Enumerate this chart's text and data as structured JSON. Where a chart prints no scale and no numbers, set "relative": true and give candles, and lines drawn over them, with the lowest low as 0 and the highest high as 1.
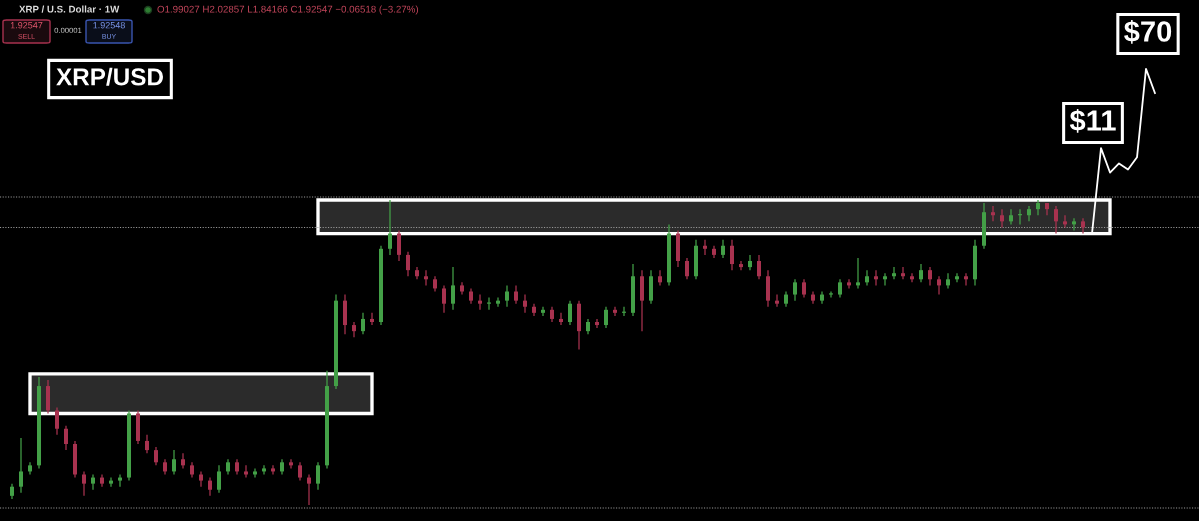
{
  "chart_data": {
    "type": "candlestick",
    "title": "XRP/USD",
    "annotations": [
      "XRP / U.S. Dollar · 1W",
      "O1.99027 H2.02857 L1.84166 C1.92547 −0.06518 (−3.27%)",
      "1.92547",
      "SELL",
      "0.00001",
      "1.92548",
      "BUY",
      "$11",
      "$70"
    ],
    "categories": [
      null,
      null,
      null,
      null,
      null,
      null,
      null,
      null,
      null,
      null,
      null,
      null,
      null,
      null,
      null,
      null,
      null,
      null,
      null,
      null,
      null,
      null,
      null,
      null,
      null,
      null,
      null,
      null,
      null,
      null,
      null,
      null,
      null,
      null,
      null,
      null,
      null,
      null,
      null,
      null,
      null,
      null,
      null,
      null,
      null,
      null,
      null,
      null,
      null,
      null,
      null,
      null,
      null,
      null,
      null,
      null,
      null,
      null,
      null,
      null,
      null,
      null,
      null,
      null,
      null,
      null,
      null,
      null,
      null,
      null,
      null,
      null,
      null,
      null,
      null,
      null,
      null,
      null,
      null,
      null,
      null,
      null,
      null,
      null,
      null,
      null,
      null,
      null,
      null,
      null,
      null,
      null,
      null,
      null,
      null,
      null,
      null,
      null,
      null,
      null,
      null,
      null,
      null,
      null,
      null,
      null,
      null,
      null,
      null,
      null,
      null,
      null,
      null,
      null,
      null,
      null,
      null,
      null,
      null,
      null,
      null,
      null,
      null,
      null,
      null,
      null,
      null,
      null
    ],
    "ohlc": [
      [
        0.03,
        0.07,
        0.02,
        0.06
      ],
      [
        0.06,
        0.22,
        0.04,
        0.11
      ],
      [
        0.11,
        0.14,
        0.1,
        0.13
      ],
      [
        0.13,
        0.42,
        0.12,
        0.39
      ],
      [
        0.39,
        0.41,
        0.3,
        0.31
      ],
      [
        0.31,
        0.32,
        0.23,
        0.25
      ],
      [
        0.25,
        0.26,
        0.18,
        0.2
      ],
      [
        0.2,
        0.21,
        0.09,
        0.1
      ],
      [
        0.1,
        0.11,
        0.03,
        0.07
      ],
      [
        0.07,
        0.1,
        0.05,
        0.09
      ],
      [
        0.09,
        0.1,
        0.06,
        0.07
      ],
      [
        0.07,
        0.09,
        0.06,
        0.08
      ],
      [
        0.08,
        0.1,
        0.06,
        0.09
      ],
      [
        0.09,
        0.31,
        0.08,
        0.3
      ],
      [
        0.3,
        0.31,
        0.2,
        0.21
      ],
      [
        0.21,
        0.23,
        0.17,
        0.18
      ],
      [
        0.18,
        0.19,
        0.13,
        0.14
      ],
      [
        0.14,
        0.15,
        0.1,
        0.11
      ],
      [
        0.11,
        0.18,
        0.1,
        0.15
      ],
      [
        0.15,
        0.17,
        0.12,
        0.13
      ],
      [
        0.13,
        0.14,
        0.09,
        0.1
      ],
      [
        0.1,
        0.11,
        0.06,
        0.08
      ],
      [
        0.08,
        0.09,
        0.03,
        0.05
      ],
      [
        0.05,
        0.13,
        0.04,
        0.11
      ],
      [
        0.11,
        0.15,
        0.1,
        0.14
      ],
      [
        0.14,
        0.15,
        0.1,
        0.11
      ],
      [
        0.11,
        0.13,
        0.09,
        0.1
      ],
      [
        0.1,
        0.12,
        0.09,
        0.11
      ],
      [
        0.11,
        0.13,
        0.1,
        0.12
      ],
      [
        0.12,
        0.13,
        0.1,
        0.11
      ],
      [
        0.11,
        0.15,
        0.1,
        0.14
      ],
      [
        0.14,
        0.15,
        0.12,
        0.13
      ],
      [
        0.13,
        0.14,
        0.08,
        0.09
      ],
      [
        0.09,
        0.1,
        0.0,
        0.07
      ],
      [
        0.07,
        0.14,
        0.05,
        0.13
      ],
      [
        0.13,
        0.44,
        0.12,
        0.39
      ],
      [
        0.39,
        0.69,
        0.38,
        0.67
      ],
      [
        0.67,
        0.69,
        0.56,
        0.59
      ],
      [
        0.59,
        0.6,
        0.55,
        0.57
      ],
      [
        0.57,
        0.63,
        0.56,
        0.61
      ],
      [
        0.61,
        0.63,
        0.59,
        0.6
      ],
      [
        0.6,
        0.85,
        0.59,
        0.84
      ],
      [
        0.84,
        1.0,
        0.82,
        0.89
      ],
      [
        0.89,
        0.9,
        0.8,
        0.82
      ],
      [
        0.82,
        0.83,
        0.75,
        0.77
      ],
      [
        0.77,
        0.78,
        0.74,
        0.75
      ],
      [
        0.75,
        0.77,
        0.72,
        0.74
      ],
      [
        0.74,
        0.75,
        0.7,
        0.71
      ],
      [
        0.71,
        0.72,
        0.63,
        0.66
      ],
      [
        0.66,
        0.78,
        0.64,
        0.72
      ],
      [
        0.72,
        0.73,
        0.69,
        0.7
      ],
      [
        0.7,
        0.71,
        0.66,
        0.67
      ],
      [
        0.67,
        0.69,
        0.64,
        0.66
      ],
      [
        0.66,
        0.68,
        0.64,
        0.66
      ],
      [
        0.66,
        0.68,
        0.65,
        0.67
      ],
      [
        0.67,
        0.72,
        0.65,
        0.7
      ],
      [
        0.7,
        0.72,
        0.66,
        0.67
      ],
      [
        0.67,
        0.69,
        0.63,
        0.65
      ],
      [
        0.65,
        0.66,
        0.62,
        0.63
      ],
      [
        0.63,
        0.65,
        0.62,
        0.64
      ],
      [
        0.64,
        0.65,
        0.6,
        0.61
      ],
      [
        0.61,
        0.63,
        0.59,
        0.6
      ],
      [
        0.6,
        0.67,
        0.59,
        0.66
      ],
      [
        0.66,
        0.67,
        0.51,
        0.57
      ],
      [
        0.57,
        0.61,
        0.56,
        0.6
      ],
      [
        0.6,
        0.61,
        0.58,
        0.59
      ],
      [
        0.59,
        0.65,
        0.58,
        0.64
      ],
      [
        0.64,
        0.65,
        0.62,
        0.63
      ],
      [
        0.63,
        0.65,
        0.62,
        0.63
      ],
      [
        0.63,
        0.79,
        0.62,
        0.75
      ],
      [
        0.75,
        0.77,
        0.57,
        0.67
      ],
      [
        0.67,
        0.77,
        0.66,
        0.75
      ],
      [
        0.75,
        0.77,
        0.72,
        0.73
      ],
      [
        0.73,
        0.92,
        0.72,
        0.89
      ],
      [
        0.89,
        0.9,
        0.78,
        0.8
      ],
      [
        0.8,
        0.81,
        0.74,
        0.75
      ],
      [
        0.75,
        0.87,
        0.74,
        0.85
      ],
      [
        0.85,
        0.87,
        0.82,
        0.84
      ],
      [
        0.84,
        0.85,
        0.81,
        0.82
      ],
      [
        0.82,
        0.87,
        0.81,
        0.85
      ],
      [
        0.85,
        0.87,
        0.77,
        0.79
      ],
      [
        0.79,
        0.8,
        0.77,
        0.78
      ],
      [
        0.78,
        0.82,
        0.77,
        0.8
      ],
      [
        0.8,
        0.82,
        0.74,
        0.75
      ],
      [
        0.75,
        0.77,
        0.65,
        0.67
      ],
      [
        0.67,
        0.69,
        0.65,
        0.66
      ],
      [
        0.66,
        0.7,
        0.65,
        0.69
      ],
      [
        0.69,
        0.74,
        0.67,
        0.73
      ],
      [
        0.73,
        0.74,
        0.68,
        0.69
      ],
      [
        0.69,
        0.7,
        0.66,
        0.67
      ],
      [
        0.67,
        0.7,
        0.66,
        0.69
      ],
      [
        0.69,
        0.7,
        0.68,
        0.69
      ],
      [
        0.69,
        0.74,
        0.68,
        0.73
      ],
      [
        0.73,
        0.74,
        0.71,
        0.72
      ],
      [
        0.72,
        0.81,
        0.71,
        0.73
      ],
      [
        0.73,
        0.77,
        0.72,
        0.75
      ],
      [
        0.75,
        0.77,
        0.72,
        0.74
      ],
      [
        0.74,
        0.76,
        0.72,
        0.75
      ],
      [
        0.75,
        0.78,
        0.74,
        0.76
      ],
      [
        0.76,
        0.78,
        0.74,
        0.75
      ],
      [
        0.75,
        0.76,
        0.73,
        0.74
      ],
      [
        0.74,
        0.79,
        0.73,
        0.77
      ],
      [
        0.77,
        0.78,
        0.72,
        0.74
      ],
      [
        0.74,
        0.75,
        0.69,
        0.72
      ],
      [
        0.72,
        0.76,
        0.71,
        0.74
      ],
      [
        0.74,
        0.76,
        0.73,
        0.75
      ],
      [
        0.75,
        0.76,
        0.72,
        0.74
      ],
      [
        0.74,
        0.87,
        0.72,
        0.85
      ],
      [
        0.85,
        0.99,
        0.84,
        0.96
      ],
      [
        0.96,
        0.98,
        0.93,
        0.95
      ],
      [
        0.95,
        0.97,
        0.91,
        0.93
      ],
      [
        0.93,
        0.97,
        0.92,
        0.95
      ],
      [
        0.95,
        0.97,
        0.92,
        0.95
      ],
      [
        0.95,
        0.98,
        0.93,
        0.97
      ],
      [
        0.97,
        1.0,
        0.95,
        0.99
      ],
      [
        0.99,
        0.99,
        0.95,
        0.97
      ],
      [
        0.97,
        0.98,
        0.89,
        0.93
      ],
      [
        0.93,
        0.95,
        0.91,
        0.92
      ],
      [
        0.92,
        0.94,
        0.9,
        0.93
      ],
      [
        0.93,
        0.94,
        0.89,
        0.91
      ],
      null,
      null,
      null,
      null,
      null,
      null,
      null,
      null
    ],
    "colors": [
      "#43a047",
      "#43a047",
      "#43a047",
      "#43a047",
      "#a8324f",
      "#a8324f",
      "#a8324f",
      "#a8324f",
      "#a8324f",
      "#43a047",
      "#a8324f",
      "#43a047",
      "#43a047",
      "#43a047",
      "#a8324f",
      "#a8324f",
      "#a8324f",
      "#a8324f",
      "#43a047",
      "#a8324f",
      "#a8324f",
      "#a8324f",
      "#a8324f",
      "#43a047",
      "#43a047",
      "#a8324f",
      "#a8324f",
      "#43a047",
      "#43a047",
      "#a8324f",
      "#43a047",
      "#a8324f",
      "#a8324f",
      "#a8324f",
      "#43a047",
      "#43a047",
      "#43a047",
      "#a8324f",
      "#a8324f",
      "#43a047",
      "#a8324f",
      "#43a047",
      "#43a047",
      "#a8324f",
      "#a8324f",
      "#a8324f",
      "#a8324f",
      "#a8324f",
      "#a8324f",
      "#43a047",
      "#a8324f",
      "#a8324f",
      "#a8324f",
      "#43a047",
      "#43a047",
      "#43a047",
      "#a8324f",
      "#a8324f",
      "#a8324f",
      "#43a047",
      "#a8324f",
      "#a8324f",
      "#43a047",
      "#a8324f",
      "#43a047",
      "#a8324f",
      "#43a047",
      "#a8324f",
      "#43a047",
      "#43a047",
      "#a8324f",
      "#43a047",
      "#a8324f",
      "#43a047",
      "#a8324f",
      "#a8324f",
      "#43a047",
      "#a8324f",
      "#a8324f",
      "#43a047",
      "#a8324f",
      "#a8324f",
      "#43a047",
      "#a8324f",
      "#a8324f",
      "#a8324f",
      "#43a047",
      "#43a047",
      "#a8324f",
      "#a8324f",
      "#43a047",
      "#43a047",
      "#43a047",
      "#a8324f",
      "#43a047",
      "#43a047",
      "#a8324f",
      "#43a047",
      "#43a047",
      "#a8324f",
      "#a8324f",
      "#43a047",
      "#a8324f",
      "#a8324f",
      "#43a047",
      "#43a047",
      "#a8324f",
      "#43a047",
      "#43a047",
      "#a8324f",
      "#a8324f",
      "#43a047",
      "#43a047",
      "#43a047",
      "#43a047",
      "#a8324f",
      "#a8324f",
      "#a8324f",
      "#43a047",
      "#a8324f",
      null,
      null,
      null,
      null,
      null,
      null,
      null,
      null
    ],
    "relative": true,
    "series": [
      {
        "type": "line",
        "color": "#ffffff",
        "values": [
          null,
          null,
          null,
          null,
          null,
          null,
          null,
          null,
          null,
          null,
          null,
          null,
          null,
          null,
          null,
          null,
          null,
          null,
          null,
          null,
          null,
          null,
          null,
          null,
          null,
          null,
          null,
          null,
          null,
          null,
          null,
          null,
          null,
          null,
          null,
          null,
          null,
          null,
          null,
          null,
          null,
          null,
          null,
          null,
          null,
          null,
          null,
          null,
          null,
          null,
          null,
          null,
          null,
          null,
          null,
          null,
          null,
          null,
          null,
          null,
          null,
          null,
          null,
          null,
          null,
          null,
          null,
          null,
          null,
          null,
          null,
          null,
          null,
          null,
          null,
          null,
          null,
          null,
          null,
          null,
          null,
          null,
          null,
          null,
          null,
          null,
          null,
          null,
          null,
          null,
          null,
          null,
          null,
          null,
          null,
          null,
          null,
          null,
          null,
          null,
          null,
          null,
          null,
          null,
          null,
          null,
          null,
          null,
          null,
          null,
          null,
          null,
          null,
          null,
          null,
          null,
          null,
          null,
          null,
          null,
          null,
          null,
          null,
          null,
          null,
          null,
          null,
          null
        ],
        "lower": [
          null,
          null,
          0.3,
          0.3,
          0.3,
          0.3,
          0.3,
          0.3,
          0.3,
          0.3,
          0.3,
          0.3,
          0.3,
          0.3,
          0.3,
          0.3,
          0.3,
          0.3,
          0.3,
          0.3,
          0.3,
          0.3,
          0.3,
          0.3,
          0.3,
          0.3,
          0.3,
          0.3,
          0.3,
          0.3,
          0.3,
          0.3,
          0.3,
          0.3,
          0.3,
          0.3,
          0.3,
          0.3,
          0.3,
          0.3,
          0.3,
          null,
          null,
          null,
          null,
          null,
          null,
          null,
          null,
          null,
          null,
          null,
          null,
          null,
          null,
          null,
          null,
          null,
          null,
          null,
          null,
          null,
          null,
          null,
          null,
          null,
          null,
          null,
          null,
          null,
          null,
          null,
          null,
          null,
          null,
          null,
          null,
          null,
          null,
          null,
          null,
          null,
          null,
          null,
          null,
          null,
          null,
          null,
          null,
          null,
          null,
          null,
          null,
          null,
          null,
          null,
          null,
          null,
          null,
          null,
          null,
          null,
          null,
          null,
          null,
          null,
          null,
          null,
          null,
          null,
          null,
          null,
          null,
          null,
          null,
          null,
          null,
          null,
          null,
          null,
          null,
          null,
          null,
          null,
          null,
          null,
          null,
          null
        ],
        "upper": [
          null,
          null,
          0.43,
          0.43,
          0.43,
          0.43,
          0.43,
          0.43,
          0.43,
          0.43,
          0.43,
          0.43,
          0.43,
          0.43,
          0.43,
          0.43,
          0.43,
          0.43,
          0.43,
          0.43,
          0.43,
          0.43,
          0.43,
          0.43,
          0.43,
          0.43,
          0.43,
          0.43,
          0.43,
          0.43,
          0.43,
          0.43,
          0.43,
          0.43,
          0.43,
          0.43,
          0.43,
          0.43,
          0.43,
          0.43,
          0.43,
          null,
          null,
          null,
          null,
          null,
          null,
          null,
          null,
          null,
          null,
          null,
          null,
          null,
          null,
          null,
          null,
          null,
          null,
          null,
          null,
          null,
          null,
          null,
          null,
          null,
          null,
          null,
          null,
          null,
          null,
          null,
          null,
          null,
          null,
          null,
          null,
          null,
          null,
          null,
          null,
          null,
          null,
          null,
          null,
          null,
          null,
          null,
          null,
          null,
          null,
          null,
          null,
          null,
          null,
          null,
          null,
          null,
          null,
          null,
          null,
          null,
          null,
          null,
          null,
          null,
          null,
          null,
          null,
          null,
          null,
          null,
          null,
          null,
          null,
          null,
          null,
          null,
          null,
          null,
          null,
          null,
          null,
          null,
          null,
          null,
          null,
          null
        ]
      },
      {
        "type": "line",
        "color": "#ffffff",
        "values": [
          null,
          null,
          null,
          null,
          null,
          null,
          null,
          null,
          null,
          null,
          null,
          null,
          null,
          null,
          null,
          null,
          null,
          null,
          null,
          null,
          null,
          null,
          null,
          null,
          null,
          null,
          null,
          null,
          null,
          null,
          null,
          null,
          null,
          null,
          null,
          null,
          null,
          null,
          null,
          null,
          null,
          null,
          null,
          null,
          null,
          null,
          null,
          null,
          null,
          null,
          null,
          null,
          null,
          null,
          null,
          null,
          null,
          null,
          null,
          null,
          null,
          null,
          null,
          null,
          null,
          null,
          null,
          null,
          null,
          null,
          null,
          null,
          null,
          null,
          null,
          null,
          null,
          null,
          null,
          null,
          null,
          null,
          null,
          null,
          null,
          null,
          null,
          null,
          null,
          null,
          null,
          null,
          null,
          null,
          null,
          null,
          null,
          null,
          null,
          null,
          null,
          null,
          null,
          null,
          null,
          null,
          null,
          null,
          null,
          null,
          null,
          null,
          null,
          null,
          null,
          null,
          null,
          null,
          null,
          null,
          null,
          null,
          null,
          null,
          null,
          null,
          null,
          null
        ],
        "lower": [
          null,
          null,
          null,
          null,
          null,
          null,
          null,
          null,
          null,
          null,
          null,
          null,
          null,
          null,
          null,
          null,
          null,
          null,
          null,
          null,
          null,
          null,
          null,
          null,
          null,
          null,
          null,
          null,
          null,
          null,
          null,
          null,
          null,
          null,
          0.89,
          0.89,
          0.89,
          0.89,
          0.89,
          0.89,
          0.89,
          0.89,
          0.89,
          0.89,
          0.89,
          0.89,
          0.89,
          0.89,
          0.89,
          0.89,
          0.89,
          0.89,
          0.89,
          0.89,
          0.89,
          0.89,
          0.89,
          0.89,
          0.89,
          0.89,
          0.89,
          0.89,
          0.89,
          0.89,
          0.89,
          0.89,
          0.89,
          0.89,
          0.89,
          0.89,
          0.89,
          0.89,
          0.89,
          0.89,
          0.89,
          0.89,
          0.89,
          0.89,
          0.89,
          0.89,
          0.89,
          0.89,
          0.89,
          0.89,
          0.89,
          0.89,
          0.89,
          0.89,
          0.89,
          0.89,
          0.89,
          0.89,
          0.89,
          0.89,
          0.89,
          0.89,
          0.89,
          0.89,
          0.89,
          0.89,
          0.89,
          0.89,
          0.89,
          0.89,
          0.89,
          0.89,
          0.89,
          0.89,
          0.89,
          0.89,
          0.89,
          0.89,
          0.89,
          0.89,
          0.89,
          0.89,
          0.89,
          0.89,
          0.89,
          0.89,
          0.89,
          0.89,
          0.89,
          null,
          null,
          null,
          null,
          null
        ],
        "upper": [
          null,
          null,
          null,
          null,
          null,
          null,
          null,
          null,
          null,
          null,
          null,
          null,
          null,
          null,
          null,
          null,
          null,
          null,
          null,
          null,
          null,
          null,
          null,
          null,
          null,
          null,
          null,
          null,
          null,
          null,
          null,
          null,
          null,
          null,
          1.0,
          1.0,
          1.0,
          1.0,
          1.0,
          1.0,
          1.0,
          1.0,
          1.0,
          1.0,
          1.0,
          1.0,
          1.0,
          1.0,
          1.0,
          1.0,
          1.0,
          1.0,
          1.0,
          1.0,
          1.0,
          1.0,
          1.0,
          1.0,
          1.0,
          1.0,
          1.0,
          1.0,
          1.0,
          1.0,
          1.0,
          1.0,
          1.0,
          1.0,
          1.0,
          1.0,
          1.0,
          1.0,
          1.0,
          1.0,
          1.0,
          1.0,
          1.0,
          1.0,
          1.0,
          1.0,
          1.0,
          1.0,
          1.0,
          1.0,
          1.0,
          1.0,
          1.0,
          1.0,
          1.0,
          1.0,
          1.0,
          1.0,
          1.0,
          1.0,
          1.0,
          1.0,
          1.0,
          1.0,
          1.0,
          1.0,
          1.0,
          1.0,
          1.0,
          1.0,
          1.0,
          1.0,
          1.0,
          1.0,
          1.0,
          1.0,
          1.0,
          1.0,
          1.0,
          1.0,
          1.0,
          1.0,
          1.0,
          1.0,
          1.0,
          1.0,
          1.0,
          1.0,
          1.0,
          null,
          null,
          null,
          null,
          null
        ]
      },
      {
        "type": "line",
        "color": "#ffffff",
        "values": [
          null,
          null,
          null,
          null,
          null,
          null,
          null,
          null,
          null,
          null,
          null,
          null,
          null,
          null,
          null,
          null,
          null,
          null,
          null,
          null,
          null,
          null,
          null,
          null,
          null,
          null,
          null,
          null,
          null,
          null,
          null,
          null,
          null,
          null,
          null,
          null,
          null,
          null,
          null,
          null,
          null,
          null,
          null,
          null,
          null,
          null,
          null,
          null,
          null,
          null,
          null,
          null,
          null,
          null,
          null,
          null,
          null,
          null,
          null,
          null,
          null,
          null,
          null,
          null,
          null,
          null,
          null,
          null,
          null,
          null,
          null,
          null,
          null,
          null,
          null,
          null,
          null,
          null,
          null,
          null,
          null,
          null,
          null,
          null,
          null,
          null,
          null,
          null,
          null,
          null,
          null,
          null,
          null,
          null,
          null,
          null,
          null,
          null,
          null,
          null,
          null,
          null,
          null,
          null,
          null,
          null,
          null,
          null,
          null,
          null,
          null,
          null,
          null,
          null,
          null,
          null,
          null,
          null,
          null,
          null,
          0.89,
          1.17,
          1.09,
          1.12,
          1.1,
          1.14,
          1.43,
          1.35
        ]
      }
    ],
    "ref_lines": [
      {
        "axis": "y",
        "value": 1.01,
        "color": "#9a9a9a",
        "line_style": "dotted"
      },
      {
        "axis": "y",
        "value": 0.91,
        "color": "#9a9a9a",
        "line_style": "dotted"
      },
      {
        "axis": "y",
        "value": -0.01,
        "color": "#9a9a9a",
        "line_style": "dotted"
      }
    ]
  }
}
